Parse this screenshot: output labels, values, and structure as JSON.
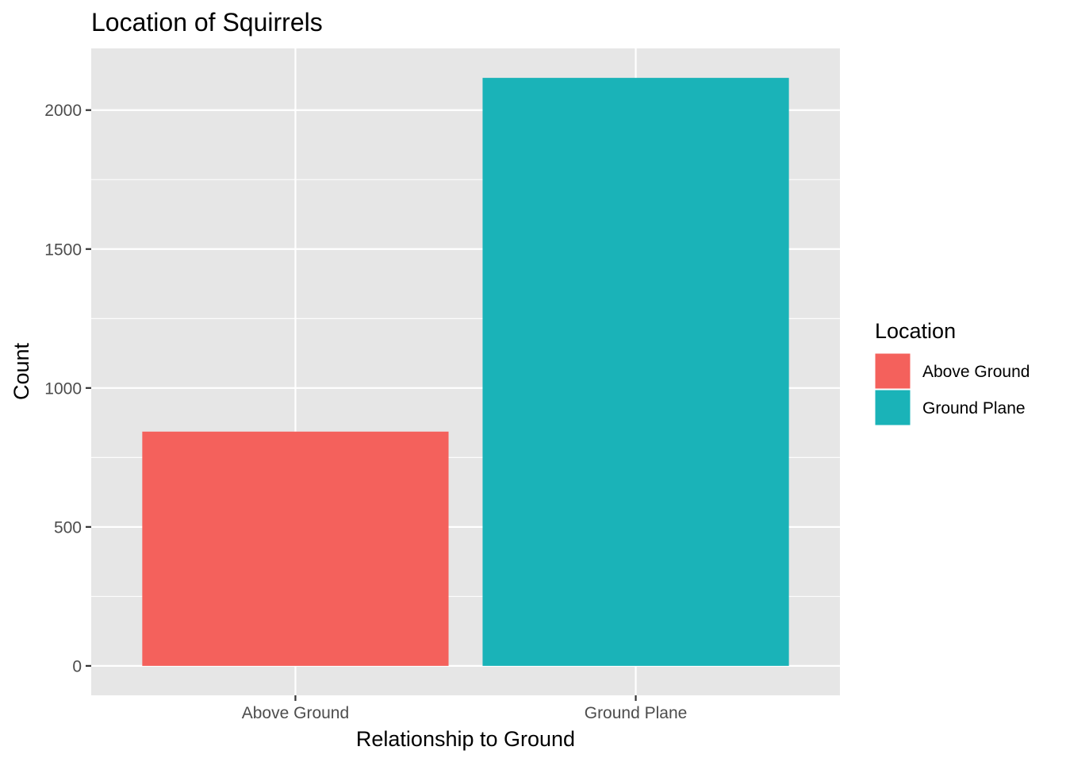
{
  "chart_data": {
    "type": "bar",
    "title": "Location of Squirrels",
    "xlabel": "Relationship to Ground",
    "ylabel": "Count",
    "categories": [
      "Above Ground",
      "Ground Plane"
    ],
    "values": [
      843,
      2116
    ],
    "colors": [
      "#F4615C",
      "#1AB3B8"
    ],
    "ylim": [
      -106,
      2222
    ],
    "yticks": [
      0,
      500,
      1000,
      1500,
      2000
    ],
    "ytick_labels": [
      "0",
      "500",
      "1000",
      "1500",
      "2000"
    ],
    "yminor": [
      250,
      750,
      1250,
      1750
    ],
    "grid": true,
    "panel_background": "#E6E6E6",
    "legend": {
      "title": "Location",
      "position": "right",
      "entries": [
        "Above Ground",
        "Ground Plane"
      ]
    }
  }
}
